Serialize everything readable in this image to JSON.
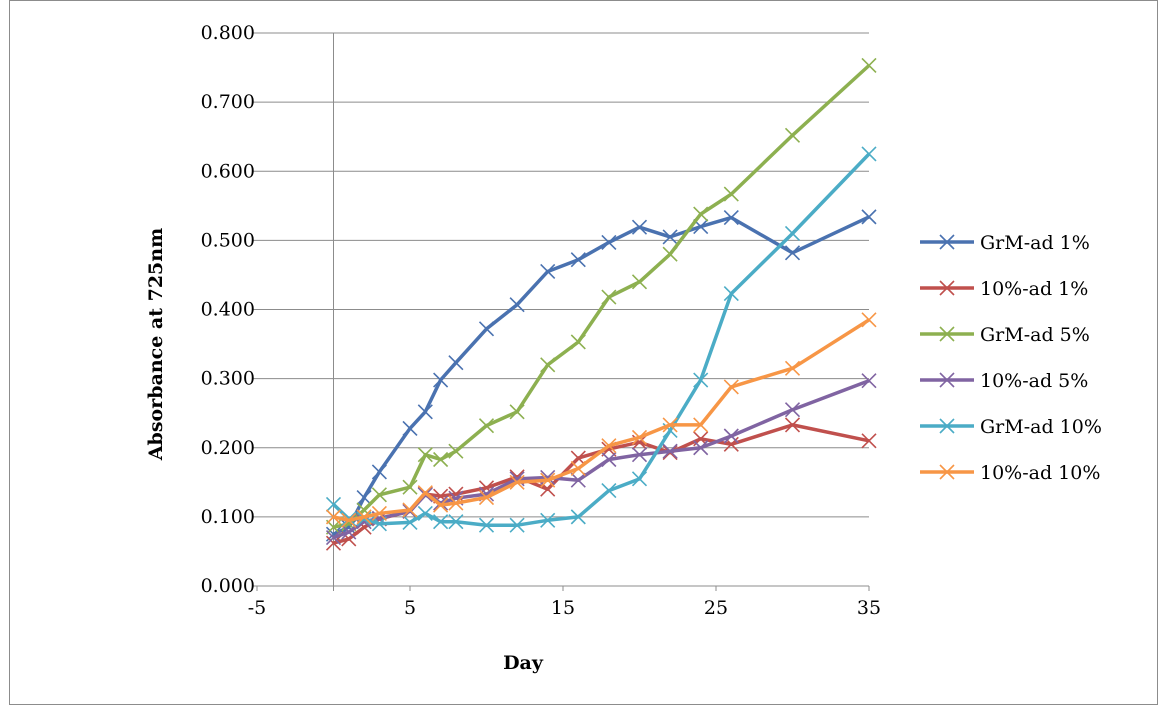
{
  "chart_data": {
    "type": "line",
    "title": "",
    "xlabel": "Day",
    "ylabel": "Absorbance at 725nm",
    "xlim": [
      -5,
      35
    ],
    "ylim": [
      0,
      0.8
    ],
    "x_ticks": [
      "-5",
      "5",
      "15",
      "25",
      "35"
    ],
    "x_tick_values": [
      -5,
      5,
      15,
      25,
      35
    ],
    "y_ticks": [
      "0.000",
      "0.100",
      "0.200",
      "0.300",
      "0.400",
      "0.500",
      "0.600",
      "0.700",
      "0.800"
    ],
    "y_tick_values": [
      0,
      0.1,
      0.2,
      0.3,
      0.4,
      0.5,
      0.6,
      0.7,
      0.8
    ],
    "grid": "horizontal",
    "legend_position": "right",
    "marker": "x",
    "series": [
      {
        "name": "GrM-ad 1%",
        "color": "#4a72b0",
        "x": [
          0,
          1,
          2,
          3,
          5,
          6,
          7,
          8,
          10,
          12,
          14,
          16,
          18,
          20,
          22,
          24,
          26,
          30,
          35
        ],
        "y": [
          0.075,
          0.085,
          0.128,
          0.165,
          0.228,
          0.252,
          0.298,
          0.323,
          0.372,
          0.407,
          0.455,
          0.472,
          0.497,
          0.519,
          0.505,
          0.52,
          0.533,
          0.482,
          0.534
        ]
      },
      {
        "name": "10%-ad 1%",
        "color": "#c0504d",
        "x": [
          0,
          1,
          2,
          3,
          5,
          6,
          7,
          8,
          10,
          12,
          14,
          16,
          18,
          20,
          22,
          24,
          26,
          30,
          35
        ],
        "y": [
          0.062,
          0.068,
          0.085,
          0.097,
          0.108,
          0.133,
          0.13,
          0.133,
          0.142,
          0.158,
          0.14,
          0.185,
          0.198,
          0.208,
          0.193,
          0.213,
          0.205,
          0.233,
          0.21
        ]
      },
      {
        "name": "GrM-ad 5%",
        "color": "#8db050",
        "x": [
          0,
          1,
          2,
          3,
          5,
          6,
          7,
          8,
          10,
          12,
          14,
          16,
          18,
          20,
          22,
          24,
          26,
          30,
          35
        ],
        "y": [
          0.085,
          0.09,
          0.11,
          0.132,
          0.143,
          0.19,
          0.183,
          0.195,
          0.232,
          0.252,
          0.32,
          0.353,
          0.418,
          0.44,
          0.48,
          0.538,
          0.567,
          0.652,
          0.753
        ]
      },
      {
        "name": "10%-ad 5%",
        "color": "#8064a2",
        "x": [
          0,
          1,
          2,
          3,
          5,
          6,
          7,
          8,
          10,
          12,
          14,
          16,
          18,
          20,
          22,
          24,
          26,
          30,
          35
        ],
        "y": [
          0.07,
          0.078,
          0.093,
          0.098,
          0.108,
          0.132,
          0.12,
          0.127,
          0.133,
          0.155,
          0.157,
          0.153,
          0.183,
          0.19,
          0.195,
          0.2,
          0.217,
          0.255,
          0.297
        ]
      },
      {
        "name": "GrM-ad 10%",
        "color": "#4bacc6",
        "x": [
          0,
          1,
          2,
          3,
          5,
          6,
          7,
          8,
          10,
          12,
          14,
          16,
          18,
          20,
          22,
          24,
          26,
          30,
          35
        ],
        "y": [
          0.118,
          0.097,
          0.097,
          0.09,
          0.092,
          0.105,
          0.093,
          0.093,
          0.088,
          0.088,
          0.095,
          0.1,
          0.138,
          0.155,
          0.225,
          0.298,
          0.423,
          0.51,
          0.625
        ]
      },
      {
        "name": "10%-ad 10%",
        "color": "#f79646",
        "x": [
          0,
          1,
          2,
          3,
          5,
          6,
          7,
          8,
          10,
          12,
          14,
          16,
          18,
          20,
          22,
          24,
          26,
          30,
          35
        ],
        "y": [
          0.1,
          0.095,
          0.1,
          0.105,
          0.11,
          0.135,
          0.117,
          0.12,
          0.128,
          0.15,
          0.153,
          0.17,
          0.203,
          0.215,
          0.233,
          0.233,
          0.288,
          0.315,
          0.385
        ]
      }
    ]
  }
}
